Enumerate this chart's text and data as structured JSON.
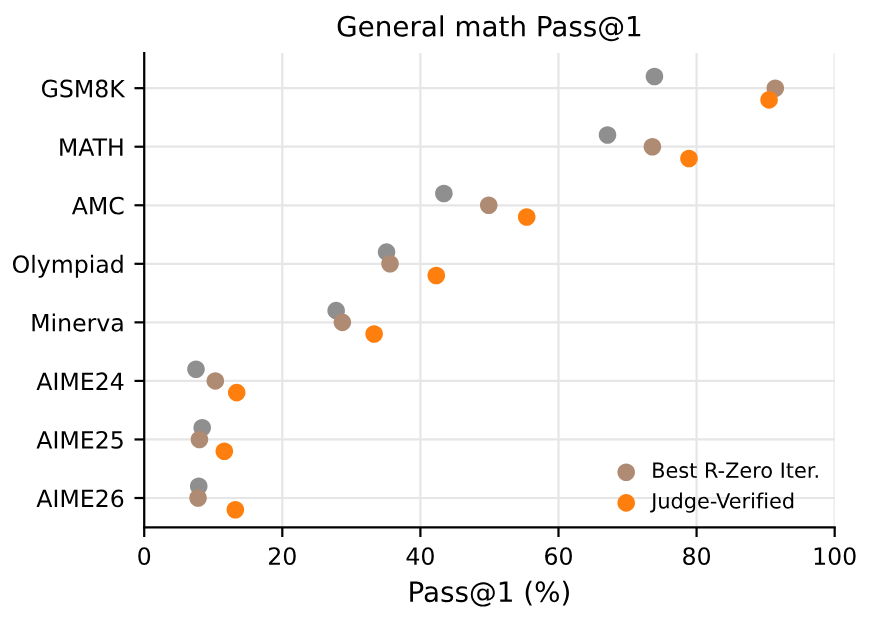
{
  "chart_data": {
    "type": "scatter",
    "orientation": "horizontal",
    "title": "General math Pass@1",
    "xlabel": "Pass@1 (%)",
    "categories": [
      "GSM8K",
      "MATH",
      "AMC",
      "Olympiad",
      "Minerva",
      "AIME24",
      "AIME25",
      "AIME26"
    ],
    "series": [
      {
        "color": "#8f8f8f",
        "values": [
          73.9,
          67.1,
          43.4,
          35.1,
          27.8,
          7.5,
          8.4,
          7.9
        ]
      },
      {
        "name": "Best R-Zero Iter.",
        "color": "#b08b74",
        "values": [
          91.4,
          73.6,
          49.9,
          35.6,
          28.7,
          10.3,
          8.0,
          7.8
        ]
      },
      {
        "name": "Judge-Verified",
        "color": "#ff7f0e",
        "values": [
          90.5,
          78.9,
          55.4,
          42.3,
          33.3,
          13.4,
          11.6,
          13.2
        ]
      }
    ],
    "xlim": [
      0,
      100
    ],
    "xticks": [
      0,
      20,
      40,
      60,
      80,
      100
    ],
    "grid": true,
    "legend": "bottom right",
    "marker": "circle"
  }
}
